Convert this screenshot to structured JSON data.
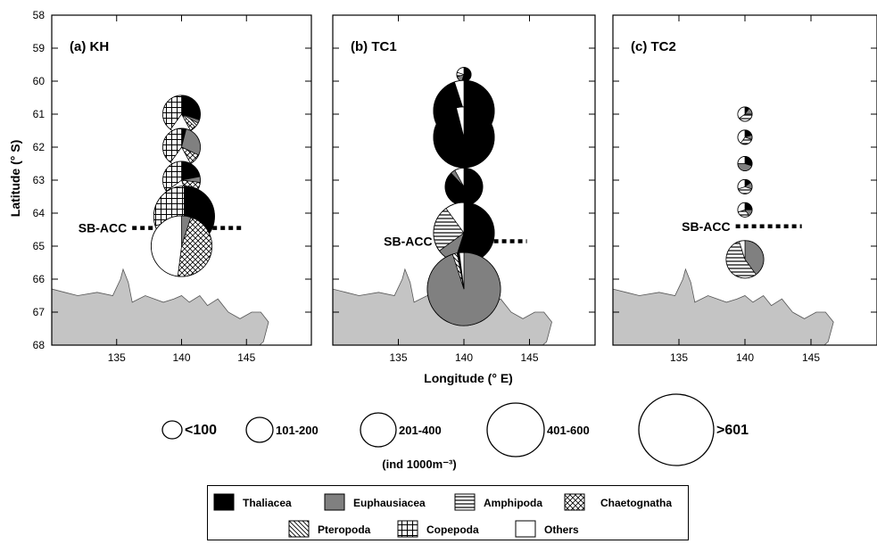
{
  "chart_data": {
    "type": "pie-map",
    "xlabel": "Longitude (° E)",
    "ylabel": "Latitude (° S)",
    "xlim": [
      130,
      150
    ],
    "ylim": [
      58,
      68
    ],
    "yticks": [
      "58",
      "59",
      "60",
      "61",
      "62",
      "63",
      "64",
      "65",
      "66",
      "67",
      "68"
    ],
    "xticks": [
      "135",
      "140",
      "145"
    ],
    "categories": [
      "Thaliacea",
      "Euphausiacea",
      "Amphipoda",
      "Chaetognatha",
      "Pteropoda",
      "Copepoda",
      "Others"
    ],
    "colors": {
      "Thaliacea": "#000000",
      "Euphausiacea": "#808080",
      "Amphipoda": "stripe-h",
      "Chaetognatha": "crosshatch",
      "Pteropoda": "diag",
      "Copepoda": "grid",
      "Others": "#ffffff"
    },
    "land_color": "#c4c4c4",
    "panels": [
      {
        "label": "(a) KH",
        "front_label": "SB-ACC",
        "front_lat": 64.45,
        "front_lon": [
          136.2,
          144.8
        ],
        "stations": [
          {
            "lat": 61.0,
            "lon": 140.0,
            "size_class": "201-400",
            "fractions": {
              "Thaliacea": 0.3,
              "Euphausiacea": 0.03,
              "Pteropoda": 0.04,
              "Chaetognatha": 0.05,
              "Others": 0.18,
              "Copepoda": 0.4
            }
          },
          {
            "lat": 62.0,
            "lon": 140.0,
            "size_class": "201-400",
            "fractions": {
              "Thaliacea": 0.04,
              "Euphausiacea": 0.28,
              "Chaetognatha": 0.1,
              "Others": 0.18,
              "Copepoda": 0.4
            }
          },
          {
            "lat": 63.0,
            "lon": 140.0,
            "size_class": "201-400",
            "fractions": {
              "Thaliacea": 0.22,
              "Euphausiacea": 0.05,
              "Chaetognatha": 0.18,
              "Others": 0.2,
              "Copepoda": 0.35
            }
          },
          {
            "lat": 64.1,
            "lon": 140.2,
            "size_class": "401-600",
            "fractions": {
              "Thaliacea": 0.38,
              "Euphausiacea": 0.05,
              "Chaetognatha": 0.02,
              "Others": 0.25,
              "Copepoda": 0.3
            }
          },
          {
            "lat": 65.0,
            "lon": 140.0,
            "size_class": "401-600",
            "fractions": {
              "Euphausiacea": 0.05,
              "Chaetognatha": 0.47,
              "Others": 0.48
            }
          }
        ]
      },
      {
        "label": "(b) TC1",
        "front_label": "SB-ACC",
        "front_lat": 64.85,
        "front_lon": [
          138.0,
          144.8
        ],
        "stations": [
          {
            "lat": 59.8,
            "lon": 140.0,
            "size_class": "<100",
            "fractions": {
              "Thaliacea": 0.55,
              "Euphausiacea": 0.15,
              "Amphipoda": 0.1,
              "Others": 0.2
            }
          },
          {
            "lat": 60.9,
            "lon": 140.0,
            "size_class": "401-600",
            "fractions": {
              "Thaliacea": 0.95,
              "Others": 0.05
            }
          },
          {
            "lat": 61.7,
            "lon": 140.0,
            "size_class": "401-600",
            "fractions": {
              "Thaliacea": 0.96,
              "Others": 0.04
            }
          },
          {
            "lat": 63.2,
            "lon": 140.0,
            "size_class": "201-400",
            "fractions": {
              "Thaliacea": 0.88,
              "Euphausiacea": 0.04,
              "Others": 0.08
            }
          },
          {
            "lat": 63.9,
            "lon": 140.0,
            "size_class": "<100",
            "fractions": {
              "Thaliacea": 0.9,
              "Others": 0.1
            }
          },
          {
            "lat": 64.6,
            "lon": 140.0,
            "size_class": "401-600",
            "fractions": {
              "Thaliacea": 0.55,
              "Euphausiacea": 0.1,
              "Amphipoda": 0.25,
              "Others": 0.1
            }
          },
          {
            "lat": 66.3,
            "lon": 140.0,
            "size_class": ">601",
            "fractions": {
              "Euphausiacea": 0.95,
              "Pteropoda": 0.02,
              "Thaliacea": 0.01,
              "Others": 0.02
            }
          }
        ]
      },
      {
        "label": "(c) TC2",
        "front_label": "SB-ACC",
        "front_lat": 64.4,
        "front_lon": [
          139.3,
          144.3
        ],
        "stations": [
          {
            "lat": 61.0,
            "lon": 140.0,
            "size_class": "<100",
            "fractions": {
              "Thaliacea": 0.1,
              "Euphausiacea": 0.15,
              "Amphipoda": 0.4,
              "Others": 0.35
            }
          },
          {
            "lat": 61.7,
            "lon": 140.0,
            "size_class": "<100",
            "fractions": {
              "Thaliacea": 0.2,
              "Euphausiacea": 0.1,
              "Amphipoda": 0.3,
              "Others": 0.4
            }
          },
          {
            "lat": 62.5,
            "lon": 140.0,
            "size_class": "<100",
            "fractions": {
              "Thaliacea": 0.3,
              "Euphausiacea": 0.45,
              "Others": 0.25
            }
          },
          {
            "lat": 63.2,
            "lon": 140.0,
            "size_class": "<100",
            "fractions": {
              "Thaliacea": 0.15,
              "Euphausiacea": 0.15,
              "Amphipoda": 0.4,
              "Others": 0.3
            }
          },
          {
            "lat": 63.9,
            "lon": 140.0,
            "size_class": "<100",
            "fractions": {
              "Thaliacea": 0.25,
              "Euphausiacea": 0.15,
              "Amphipoda": 0.3,
              "Others": 0.3
            }
          },
          {
            "lat": 65.4,
            "lon": 140.0,
            "size_class": "201-400",
            "fractions": {
              "Euphausiacea": 0.4,
              "Amphipoda": 0.55,
              "Others": 0.05
            }
          }
        ]
      }
    ],
    "size_legend": {
      "classes": [
        "<100",
        "101-200",
        "201-400",
        "401-600",
        ">601"
      ],
      "unit": "(ind 1000m⁻³)"
    }
  }
}
